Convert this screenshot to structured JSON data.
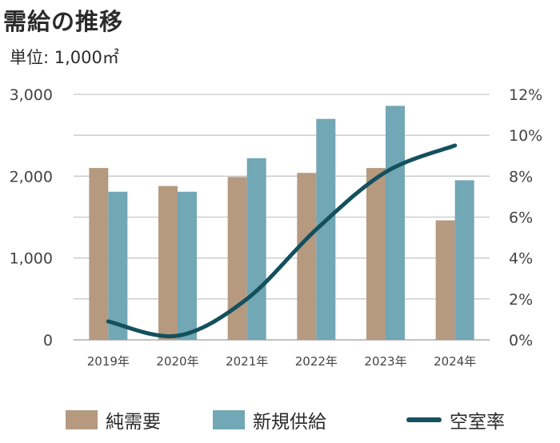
{
  "title": "需給の推移",
  "unit": "単位: 1,000㎡",
  "colors": {
    "demand": "#b59a80",
    "supply": "#72a7b5",
    "vacancy": "#14505e",
    "grid": "#c8c8c8"
  },
  "chart_data": {
    "type": "bar",
    "categories": [
      "2019年",
      "2020年",
      "2021年",
      "2022年",
      "2023年",
      "2024年"
    ],
    "series": [
      {
        "name": "純需要",
        "type": "bar",
        "axis": "left",
        "values": [
          2100,
          1880,
          1990,
          2040,
          2100,
          1460
        ]
      },
      {
        "name": "新規供給",
        "type": "bar",
        "axis": "left",
        "values": [
          1810,
          1810,
          2220,
          2700,
          2860,
          1950
        ]
      },
      {
        "name": "空室率",
        "type": "line",
        "axis": "right",
        "values": [
          0.9,
          0.2,
          2.0,
          5.4,
          8.2,
          9.5
        ]
      }
    ],
    "yleft": {
      "lim": [
        0,
        3000
      ],
      "ticks": [
        "0",
        "1,000",
        "2,000",
        "3,000"
      ]
    },
    "yright": {
      "lim": [
        0,
        12
      ],
      "ticks": [
        "0%",
        "2%",
        "4%",
        "6%",
        "8%",
        "10%",
        "12%"
      ]
    },
    "grid": true,
    "legend_position": "bottom"
  }
}
